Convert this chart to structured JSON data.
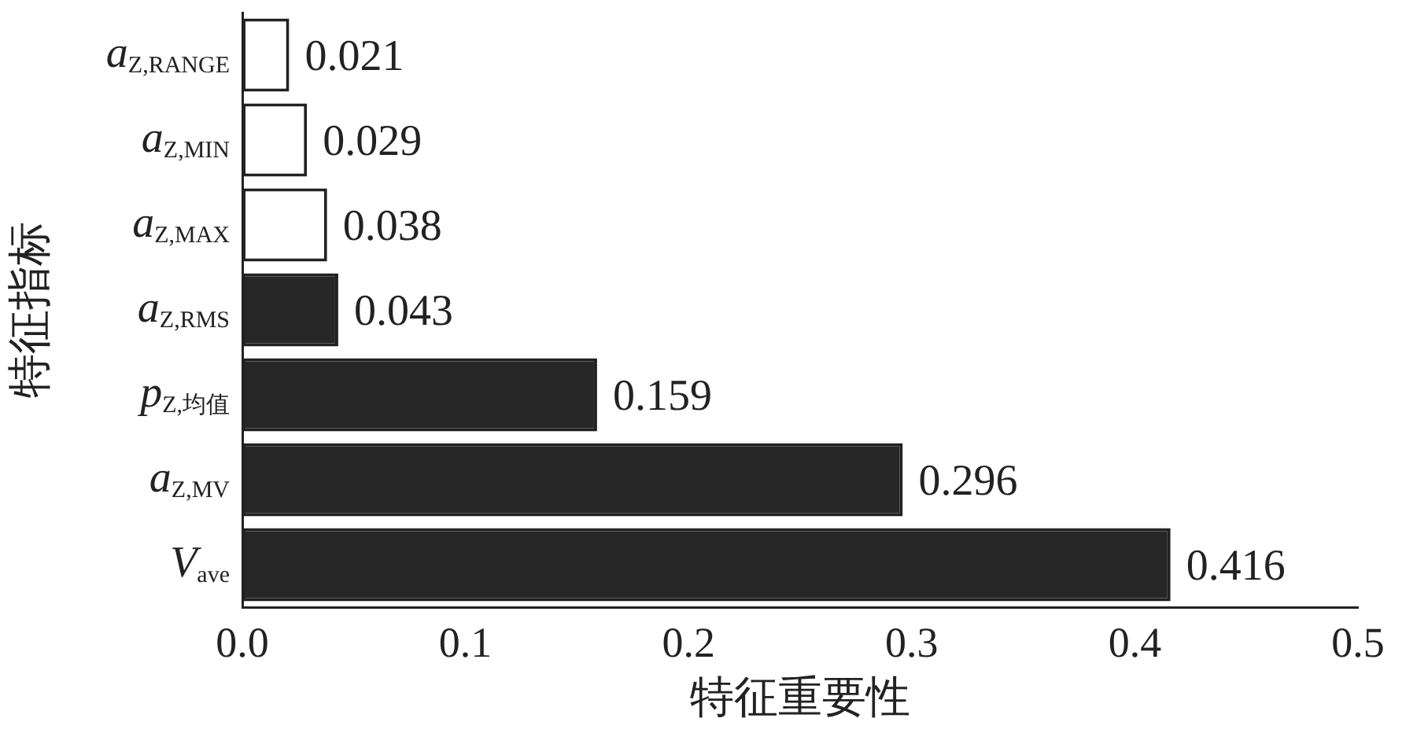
{
  "chart_data": {
    "type": "bar",
    "orientation": "horizontal",
    "xlabel": "特征重要性",
    "ylabel": "特征指标",
    "categories": [
      "a$_{Z,RANGE}$",
      "a$_{Z,MIN}$",
      "a$_{Z,MAX}$",
      "a$_{Z,RMS}$",
      "p$_{Z,均值}$",
      "a$_{Z,MV}$",
      "V$_{ave}$"
    ],
    "values": [
      0.021,
      0.029,
      0.038,
      0.043,
      0.159,
      0.296,
      0.416
    ],
    "colors": [
      "#ffffff",
      "#ffffff",
      "#ffffff",
      "#262626",
      "#262626",
      "#262626",
      "#262626"
    ],
    "xlim": [
      0,
      0.5
    ],
    "xticks": [
      {
        "value": 0,
        "label": "0.0"
      },
      {
        "value": 0.1,
        "label": "0.1"
      },
      {
        "value": 0.2,
        "label": "0.2"
      },
      {
        "value": 0.3,
        "label": "0.3"
      },
      {
        "value": 0.4,
        "label": "0.4"
      },
      {
        "value": 0.5,
        "label": "0.5"
      }
    ],
    "grid": false,
    "legend": false,
    "data_labels": true
  }
}
